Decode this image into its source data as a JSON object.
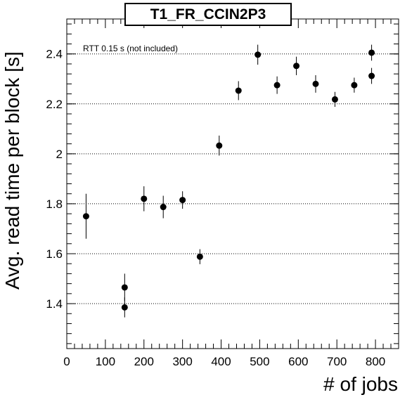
{
  "chart_data": {
    "type": "scatter",
    "title": "T1_FR_CCIN2P3",
    "xlabel": "# of jobs",
    "ylabel": "Avg. read time per block [s]",
    "annotation": "RTT 0.15 s (not included)",
    "xlim": [
      0,
      860
    ],
    "ylim": [
      1.22,
      2.54
    ],
    "xticks": [
      0,
      100,
      200,
      300,
      400,
      500,
      600,
      700,
      800
    ],
    "yticks": [
      1.4,
      1.6,
      1.8,
      2,
      2.2,
      2.4
    ],
    "ytick_labels": [
      "1.4",
      "1.6",
      "1.8",
      "2",
      "2.2",
      "2.4"
    ],
    "grid": "horizontal-dotted",
    "marker_color": "#000000",
    "points": [
      {
        "x": 50,
        "y": 1.75,
        "err": 0.09
      },
      {
        "x": 150,
        "y": 1.465,
        "err": 0.055
      },
      {
        "x": 150,
        "y": 1.385,
        "err": 0.04
      },
      {
        "x": 200,
        "y": 1.82,
        "err": 0.05
      },
      {
        "x": 250,
        "y": 1.787,
        "err": 0.045
      },
      {
        "x": 300,
        "y": 1.815,
        "err": 0.035
      },
      {
        "x": 345,
        "y": 1.588,
        "err": 0.03
      },
      {
        "x": 395,
        "y": 2.033,
        "err": 0.04
      },
      {
        "x": 445,
        "y": 2.253,
        "err": 0.038
      },
      {
        "x": 495,
        "y": 2.397,
        "err": 0.04
      },
      {
        "x": 545,
        "y": 2.275,
        "err": 0.035
      },
      {
        "x": 595,
        "y": 2.352,
        "err": 0.037
      },
      {
        "x": 645,
        "y": 2.28,
        "err": 0.035
      },
      {
        "x": 695,
        "y": 2.218,
        "err": 0.03
      },
      {
        "x": 745,
        "y": 2.275,
        "err": 0.03
      },
      {
        "x": 790,
        "y": 2.405,
        "err": 0.032
      },
      {
        "x": 790,
        "y": 2.312,
        "err": 0.032
      }
    ]
  }
}
